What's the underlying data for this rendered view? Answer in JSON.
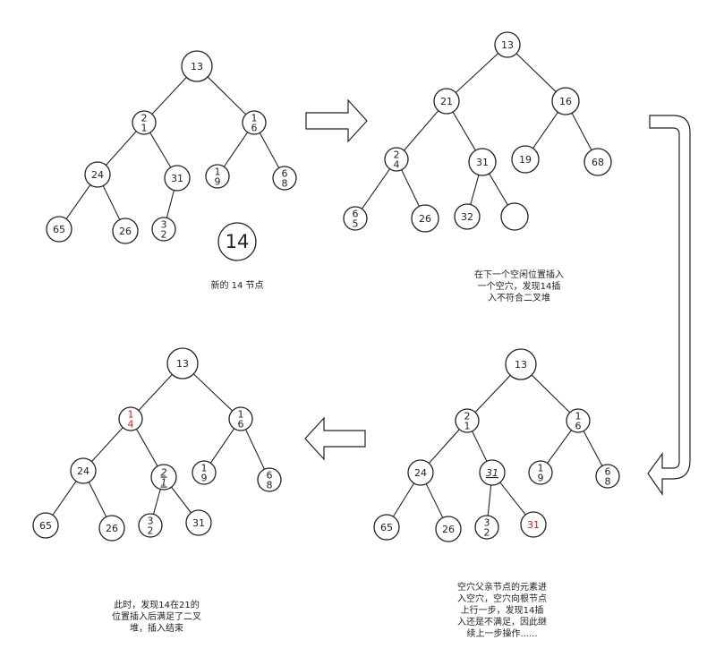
{
  "colors": {
    "stroke": "#222222",
    "highlight": "#d62020"
  },
  "panels": [
    {
      "id": "panel-1",
      "nodes": [
        {
          "id": "p1-13",
          "lines": [
            "13"
          ]
        },
        {
          "id": "p1-21",
          "lines": [
            "2",
            "1"
          ]
        },
        {
          "id": "p1-16",
          "lines": [
            "1",
            "6"
          ]
        },
        {
          "id": "p1-24",
          "lines": [
            "24"
          ]
        },
        {
          "id": "p1-31",
          "lines": [
            "31"
          ]
        },
        {
          "id": "p1-19",
          "lines": [
            "1",
            "9"
          ]
        },
        {
          "id": "p1-68",
          "lines": [
            "6",
            "8"
          ]
        },
        {
          "id": "p1-65",
          "lines": [
            "65"
          ]
        },
        {
          "id": "p1-26",
          "lines": [
            "26"
          ]
        },
        {
          "id": "p1-32",
          "lines": [
            "3",
            "2"
          ]
        },
        {
          "id": "p1-14",
          "lines": [
            "14"
          ],
          "big": true
        }
      ],
      "edges": [
        [
          "p1-13",
          "p1-21"
        ],
        [
          "p1-13",
          "p1-16"
        ],
        [
          "p1-21",
          "p1-24"
        ],
        [
          "p1-21",
          "p1-31"
        ],
        [
          "p1-16",
          "p1-19"
        ],
        [
          "p1-16",
          "p1-68"
        ],
        [
          "p1-24",
          "p1-65"
        ],
        [
          "p1-24",
          "p1-26"
        ],
        [
          "p1-31",
          "p1-32"
        ]
      ]
    },
    {
      "id": "panel-2",
      "nodes": [
        {
          "id": "p2-13",
          "lines": [
            "13"
          ]
        },
        {
          "id": "p2-21",
          "lines": [
            "21"
          ]
        },
        {
          "id": "p2-16",
          "lines": [
            "16"
          ]
        },
        {
          "id": "p2-24",
          "lines": [
            "2",
            "4"
          ]
        },
        {
          "id": "p2-31",
          "lines": [
            "31"
          ]
        },
        {
          "id": "p2-19",
          "lines": [
            "19"
          ]
        },
        {
          "id": "p2-68",
          "lines": [
            "68"
          ]
        },
        {
          "id": "p2-65",
          "lines": [
            "6",
            "5"
          ]
        },
        {
          "id": "p2-26",
          "lines": [
            "26"
          ]
        },
        {
          "id": "p2-32",
          "lines": [
            "32"
          ]
        },
        {
          "id": "p2-hole",
          "lines": []
        }
      ],
      "edges": [
        [
          "p2-13",
          "p2-21"
        ],
        [
          "p2-13",
          "p2-16"
        ],
        [
          "p2-21",
          "p2-24"
        ],
        [
          "p2-21",
          "p2-31"
        ],
        [
          "p2-16",
          "p2-19"
        ],
        [
          "p2-16",
          "p2-68"
        ],
        [
          "p2-24",
          "p2-65"
        ],
        [
          "p2-24",
          "p2-26"
        ],
        [
          "p2-31",
          "p2-32"
        ],
        [
          "p2-31",
          "p2-hole"
        ]
      ]
    },
    {
      "id": "panel-3",
      "nodes": [
        {
          "id": "p3-13",
          "lines": [
            "13"
          ]
        },
        {
          "id": "p3-21",
          "lines": [
            "2",
            "1"
          ]
        },
        {
          "id": "p3-16",
          "lines": [
            "1",
            "6"
          ]
        },
        {
          "id": "p3-24",
          "lines": [
            "24"
          ]
        },
        {
          "id": "p3-31a",
          "lines": [
            "31"
          ],
          "italic": true
        },
        {
          "id": "p3-19",
          "lines": [
            "1",
            "9"
          ]
        },
        {
          "id": "p3-68",
          "lines": [
            "6",
            "8"
          ]
        },
        {
          "id": "p3-65",
          "lines": [
            "65"
          ]
        },
        {
          "id": "p3-26",
          "lines": [
            "26"
          ]
        },
        {
          "id": "p3-32",
          "lines": [
            "3",
            "2"
          ]
        },
        {
          "id": "p3-31b",
          "lines": [
            "31"
          ],
          "red": true
        }
      ],
      "edges": [
        [
          "p3-13",
          "p3-21"
        ],
        [
          "p3-13",
          "p3-16"
        ],
        [
          "p3-21",
          "p3-24"
        ],
        [
          "p3-21",
          "p3-31a"
        ],
        [
          "p3-16",
          "p3-19"
        ],
        [
          "p3-16",
          "p3-68"
        ],
        [
          "p3-24",
          "p3-65"
        ],
        [
          "p3-24",
          "p3-26"
        ],
        [
          "p3-31a",
          "p3-32"
        ],
        [
          "p3-31a",
          "p3-31b"
        ]
      ]
    },
    {
      "id": "panel-4",
      "nodes": [
        {
          "id": "p4-13",
          "lines": [
            "13"
          ]
        },
        {
          "id": "p4-14",
          "lines": [
            "1",
            "4"
          ],
          "red": true
        },
        {
          "id": "p4-16",
          "lines": [
            "1",
            "6"
          ]
        },
        {
          "id": "p4-24",
          "lines": [
            "24"
          ]
        },
        {
          "id": "p4-21",
          "lines": [
            "2",
            "1"
          ],
          "italic": true
        },
        {
          "id": "p4-19",
          "lines": [
            "1",
            "9"
          ]
        },
        {
          "id": "p4-68",
          "lines": [
            "6",
            "8"
          ]
        },
        {
          "id": "p4-65",
          "lines": [
            "65"
          ]
        },
        {
          "id": "p4-26",
          "lines": [
            "26"
          ]
        },
        {
          "id": "p4-32",
          "lines": [
            "3",
            "2"
          ]
        },
        {
          "id": "p4-31",
          "lines": [
            "31"
          ]
        }
      ],
      "edges": [
        [
          "p4-13",
          "p4-14"
        ],
        [
          "p4-13",
          "p4-16"
        ],
        [
          "p4-14",
          "p4-24"
        ],
        [
          "p4-14",
          "p4-21"
        ],
        [
          "p4-16",
          "p4-19"
        ],
        [
          "p4-16",
          "p4-68"
        ],
        [
          "p4-24",
          "p4-65"
        ],
        [
          "p4-24",
          "p4-26"
        ],
        [
          "p4-21",
          "p4-32"
        ],
        [
          "p4-21",
          "p4-31"
        ]
      ]
    }
  ],
  "captions": {
    "panel1": [
      "新的 14 节点"
    ],
    "panel2": [
      "在下一个空闲位置插入",
      "一个空穴，发现14插",
      "入不符合二叉堆"
    ],
    "panel3": [
      "空穴父亲节点的元素进",
      "入空穴，空穴向根节点",
      "上行一步，发现14插",
      "入还是不满足，因此继",
      "续上一步操作......"
    ],
    "panel4": [
      "此时，发现14在21的",
      "位置插入后满足了二叉",
      "堆，插入结束"
    ]
  }
}
